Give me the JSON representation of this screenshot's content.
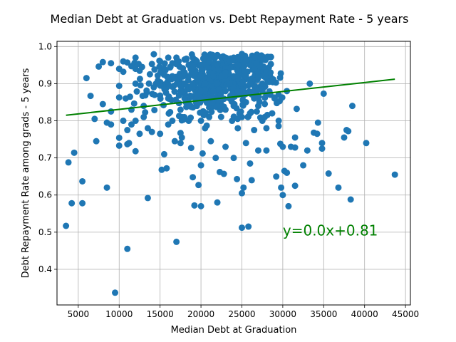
{
  "chart_data": {
    "type": "scatter",
    "title": "Median Debt at Graduation vs. Debt Repayment Rate - 5 years",
    "xlabel": "Median Debt at Graduation",
    "ylabel": "Debt Repayment Rate among grads - 5 years",
    "xlim": [
      2400,
      45600
    ],
    "ylim": [
      0.304,
      1.014
    ],
    "xticks": [
      5000,
      10000,
      15000,
      20000,
      25000,
      30000,
      35000,
      40000,
      45000
    ],
    "xtick_labels": [
      "5000",
      "10000",
      "15000",
      "20000",
      "25000",
      "30000",
      "35000",
      "40000",
      "45000"
    ],
    "yticks": [
      0.4,
      0.5,
      0.6,
      0.7,
      0.8,
      0.9,
      1.0
    ],
    "ytick_labels": [
      "0.4",
      "0.5",
      "0.6",
      "0.7",
      "0.8",
      "0.9",
      "1.0"
    ],
    "grid": true,
    "point_color": "#1f77b4",
    "fit_line_color": "#008000",
    "regression": {
      "x_start": 3500,
      "y_start": 0.815,
      "x_end": 43700,
      "y_end": 0.912
    },
    "annotation": {
      "text": "y=0.0x+0.81",
      "x": 30000,
      "y": 0.505
    },
    "points": [
      [
        3500,
        0.517
      ],
      [
        3800,
        0.688
      ],
      [
        4200,
        0.578
      ],
      [
        4500,
        0.714
      ],
      [
        5500,
        0.637
      ],
      [
        5500,
        0.578
      ],
      [
        6000,
        0.915
      ],
      [
        6500,
        0.867
      ],
      [
        7000,
        0.805
      ],
      [
        7200,
        0.745
      ],
      [
        7500,
        0.946
      ],
      [
        8000,
        0.958
      ],
      [
        8000,
        0.845
      ],
      [
        8500,
        0.795
      ],
      [
        8500,
        0.62
      ],
      [
        9000,
        0.955
      ],
      [
        9000,
        0.825
      ],
      [
        9000,
        0.79
      ],
      [
        9500,
        0.337
      ],
      [
        10000,
        0.94
      ],
      [
        10000,
        0.863
      ],
      [
        10000,
        0.754
      ],
      [
        10000,
        0.733
      ],
      [
        10000,
        0.894
      ],
      [
        10500,
        0.96
      ],
      [
        10500,
        0.932
      ],
      [
        10500,
        0.8
      ],
      [
        10800,
        0.86
      ],
      [
        11000,
        0.957
      ],
      [
        11000,
        0.775
      ],
      [
        11000,
        0.737
      ],
      [
        11000,
        0.455
      ],
      [
        11200,
        0.74
      ],
      [
        11500,
        0.947
      ],
      [
        11500,
        0.83
      ],
      [
        11500,
        0.79
      ],
      [
        12000,
        0.97
      ],
      [
        12000,
        0.94
      ],
      [
        12000,
        0.9
      ],
      [
        12000,
        0.8
      ],
      [
        12000,
        0.718
      ],
      [
        12500,
        0.765
      ],
      [
        12800,
        0.945
      ],
      [
        13000,
        0.84
      ],
      [
        13000,
        0.81
      ],
      [
        13500,
        0.78
      ],
      [
        13500,
        0.592
      ],
      [
        14000,
        0.953
      ],
      [
        14000,
        0.77
      ],
      [
        14500,
        0.9
      ],
      [
        15000,
        0.96
      ],
      [
        15000,
        0.868
      ],
      [
        15000,
        0.765
      ],
      [
        15200,
        0.668
      ],
      [
        15500,
        0.94
      ],
      [
        15500,
        0.71
      ],
      [
        15800,
        0.672
      ],
      [
        16000,
        0.97
      ],
      [
        16000,
        0.86
      ],
      [
        16000,
        0.79
      ],
      [
        16500,
        0.955
      ],
      [
        16500,
        0.92
      ],
      [
        16500,
        0.8
      ],
      [
        16800,
        0.745
      ],
      [
        17000,
        0.474
      ],
      [
        17000,
        0.97
      ],
      [
        17500,
        0.88
      ],
      [
        17500,
        0.83
      ],
      [
        17500,
        0.767
      ],
      [
        17500,
        0.74
      ],
      [
        18000,
        0.965
      ],
      [
        18000,
        0.93
      ],
      [
        18000,
        0.9
      ],
      [
        18000,
        0.86
      ],
      [
        18500,
        0.95
      ],
      [
        18500,
        0.92
      ],
      [
        18500,
        0.8
      ],
      [
        18800,
        0.727
      ],
      [
        19000,
        0.97
      ],
      [
        19000,
        0.94
      ],
      [
        19000,
        0.9
      ],
      [
        19000,
        0.648
      ],
      [
        19200,
        0.572
      ],
      [
        19500,
        0.96
      ],
      [
        19500,
        0.87
      ],
      [
        19500,
        0.84
      ],
      [
        19700,
        0.627
      ],
      [
        20000,
        0.57
      ],
      [
        20000,
        0.95
      ],
      [
        20000,
        0.92
      ],
      [
        20000,
        0.88
      ],
      [
        20000,
        0.8
      ],
      [
        20000,
        0.68
      ],
      [
        20200,
        0.712
      ],
      [
        20500,
        0.97
      ],
      [
        20500,
        0.9
      ],
      [
        20500,
        0.78
      ],
      [
        21000,
        0.96
      ],
      [
        21000,
        0.93
      ],
      [
        21000,
        0.86
      ],
      [
        21000,
        0.81
      ],
      [
        21200,
        0.745
      ],
      [
        21500,
        0.975
      ],
      [
        21500,
        0.92
      ],
      [
        21500,
        0.88
      ],
      [
        21800,
        0.7
      ],
      [
        22000,
        0.58
      ],
      [
        22000,
        0.975
      ],
      [
        22000,
        0.95
      ],
      [
        22000,
        0.9
      ],
      [
        22000,
        0.84
      ],
      [
        22300,
        0.662
      ],
      [
        22500,
        0.97
      ],
      [
        22500,
        0.92
      ],
      [
        22500,
        0.86
      ],
      [
        22800,
        0.657
      ],
      [
        23000,
        0.97
      ],
      [
        23000,
        0.93
      ],
      [
        23000,
        0.88
      ],
      [
        23000,
        0.83
      ],
      [
        23000,
        0.73
      ],
      [
        23500,
        0.96
      ],
      [
        23500,
        0.9
      ],
      [
        23500,
        0.86
      ],
      [
        23800,
        0.8
      ],
      [
        24000,
        0.97
      ],
      [
        24000,
        0.92
      ],
      [
        24000,
        0.84
      ],
      [
        24000,
        0.7
      ],
      [
        24400,
        0.643
      ],
      [
        24500,
        0.95
      ],
      [
        24500,
        0.88
      ],
      [
        24500,
        0.78
      ],
      [
        25000,
        0.98
      ],
      [
        25000,
        0.9
      ],
      [
        25000,
        0.81
      ],
      [
        25000,
        0.605
      ],
      [
        25000,
        0.512
      ],
      [
        25200,
        0.62
      ],
      [
        25500,
        0.96
      ],
      [
        25500,
        0.92
      ],
      [
        25500,
        0.85
      ],
      [
        25500,
        0.74
      ],
      [
        25800,
        0.515
      ],
      [
        26000,
        0.95
      ],
      [
        26000,
        0.9
      ],
      [
        26000,
        0.82
      ],
      [
        26000,
        0.685
      ],
      [
        26200,
        0.64
      ],
      [
        26500,
        0.94
      ],
      [
        26500,
        0.86
      ],
      [
        26500,
        0.775
      ],
      [
        27000,
        0.92
      ],
      [
        27000,
        0.84
      ],
      [
        27000,
        0.72
      ],
      [
        27500,
        0.9
      ],
      [
        27500,
        0.8
      ],
      [
        27800,
        0.81
      ],
      [
        28000,
        0.93
      ],
      [
        28000,
        0.87
      ],
      [
        28000,
        0.78
      ],
      [
        28000,
        0.72
      ],
      [
        28500,
        0.93
      ],
      [
        28700,
        0.82
      ],
      [
        29000,
        0.86
      ],
      [
        29200,
        0.65
      ],
      [
        29500,
        0.87
      ],
      [
        29500,
        0.8
      ],
      [
        29700,
        0.738
      ],
      [
        29800,
        0.62
      ],
      [
        30000,
        0.73
      ],
      [
        30000,
        0.6
      ],
      [
        30200,
        0.665
      ],
      [
        30500,
        0.88
      ],
      [
        30500,
        0.66
      ],
      [
        30700,
        0.57
      ],
      [
        31000,
        0.73
      ],
      [
        31500,
        0.728
      ],
      [
        31500,
        0.755
      ],
      [
        31500,
        0.625
      ],
      [
        31700,
        0.832
      ],
      [
        32500,
        0.68
      ],
      [
        33000,
        0.72
      ],
      [
        33300,
        0.9
      ],
      [
        33800,
        0.768
      ],
      [
        34200,
        0.765
      ],
      [
        34300,
        0.795
      ],
      [
        34800,
        0.725
      ],
      [
        34800,
        0.74
      ],
      [
        35000,
        0.873
      ],
      [
        35600,
        0.658
      ],
      [
        36800,
        0.62
      ],
      [
        37500,
        0.755
      ],
      [
        37800,
        0.775
      ],
      [
        38000,
        0.772
      ],
      [
        38300,
        0.588
      ],
      [
        38500,
        0.84
      ],
      [
        40200,
        0.74
      ],
      [
        43700,
        0.655
      ]
    ],
    "cluster": {
      "x_center": 22000,
      "x_spread": 4200,
      "y_center": 0.905,
      "y_spread": 0.045,
      "count": 520
    }
  }
}
